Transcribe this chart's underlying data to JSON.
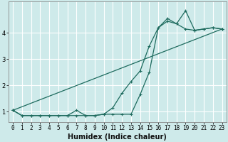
{
  "xlabel": "Humidex (Indice chaleur)",
  "bg_color": "#ceeaea",
  "grid_color": "#ffffff",
  "line_color": "#1e6b5e",
  "x_ticks": [
    0,
    1,
    2,
    3,
    4,
    5,
    6,
    7,
    8,
    9,
    10,
    11,
    12,
    13,
    14,
    15,
    16,
    17,
    18,
    19,
    20,
    21,
    22,
    23
  ],
  "ylim": [
    0.6,
    5.2
  ],
  "xlim": [
    -0.5,
    23.5
  ],
  "yticks": [
    1,
    2,
    3,
    4
  ],
  "line1_x": [
    0,
    1,
    2,
    3,
    4,
    5,
    6,
    7,
    8,
    9,
    10,
    11,
    12,
    13,
    14,
    15,
    16,
    17,
    18,
    19,
    20,
    21,
    22,
    23
  ],
  "line1_y": [
    1.05,
    0.85,
    0.85,
    0.85,
    0.85,
    0.85,
    0.85,
    1.05,
    0.85,
    0.85,
    0.9,
    0.9,
    0.9,
    0.9,
    1.65,
    2.5,
    4.2,
    4.55,
    4.35,
    4.85,
    4.1,
    4.15,
    4.2,
    4.15
  ],
  "line2_x": [
    0,
    1,
    2,
    3,
    4,
    5,
    6,
    7,
    8,
    9,
    10,
    11,
    12,
    13,
    14,
    15,
    16,
    17,
    18,
    19,
    20,
    21,
    22,
    23
  ],
  "line2_y": [
    1.05,
    0.85,
    0.85,
    0.85,
    0.85,
    0.85,
    0.85,
    0.85,
    0.85,
    0.85,
    0.9,
    1.15,
    1.7,
    2.15,
    2.55,
    3.5,
    4.2,
    4.45,
    4.35,
    4.15,
    4.1,
    4.15,
    4.2,
    4.15
  ],
  "line3_x": [
    0,
    23
  ],
  "line3_y": [
    1.05,
    4.15
  ],
  "tick_fontsize": 5.5,
  "xlabel_fontsize": 7,
  "marker_size": 3,
  "linewidth": 0.9
}
